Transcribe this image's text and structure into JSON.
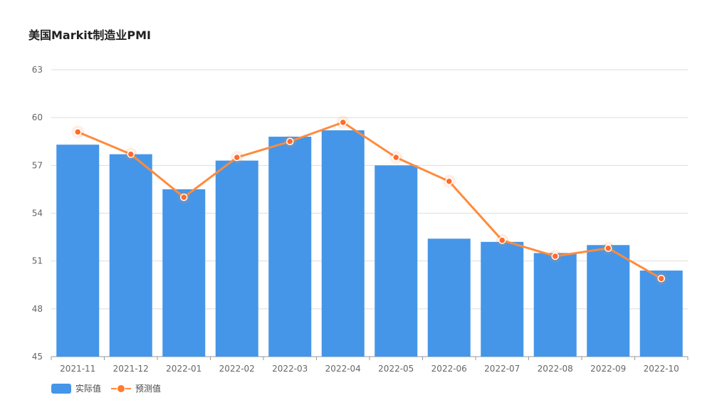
{
  "chart_data": {
    "type": "bar",
    "title": "美国Markit制造业PMI",
    "categories": [
      "2021-11",
      "2021-12",
      "2022-01",
      "2022-02",
      "2022-03",
      "2022-04",
      "2022-05",
      "2022-06",
      "2022-07",
      "2022-08",
      "2022-09",
      "2022-10"
    ],
    "series": [
      {
        "name": "实际值",
        "type": "bar",
        "color": "#4596E8",
        "values": [
          58.3,
          57.7,
          55.5,
          57.3,
          58.8,
          59.2,
          57.0,
          52.4,
          52.2,
          51.5,
          52.0,
          50.4
        ]
      },
      {
        "name": "预测值",
        "type": "line",
        "color": "#FF8B3D",
        "values": [
          59.1,
          57.7,
          55.0,
          57.5,
          58.5,
          59.7,
          57.5,
          56.0,
          52.3,
          51.3,
          51.8,
          49.9
        ]
      }
    ],
    "yticks": [
      45,
      48,
      51,
      54,
      57,
      60,
      63
    ],
    "ylim": [
      45,
      63
    ],
    "xlabel": "",
    "ylabel": "",
    "grid": true,
    "legend": "bottom-left"
  }
}
